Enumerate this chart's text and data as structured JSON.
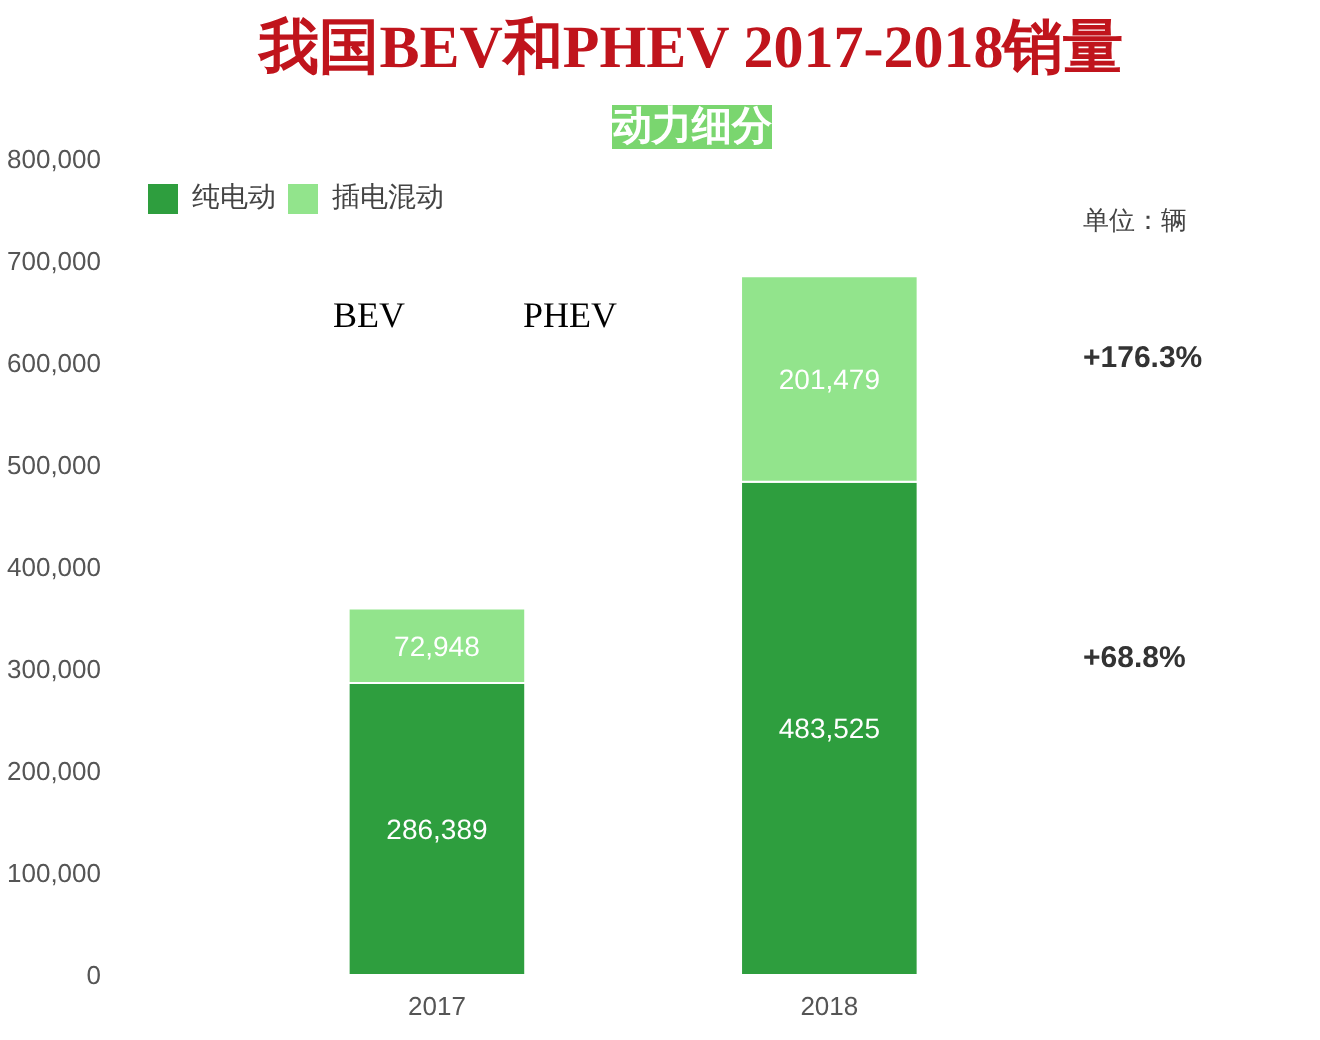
{
  "chart_data": {
    "type": "bar",
    "title": "我国BEV和PHEV 2017-2018销量",
    "subtitle": "动力细分",
    "categories": [
      "2017",
      "2018"
    ],
    "stacked": true,
    "series": [
      {
        "name": "纯电动",
        "color": "#2e9e3e",
        "values": [
          286389,
          483525
        ],
        "value_labels": [
          "286,389",
          "483,525"
        ]
      },
      {
        "name": "插电混动",
        "color": "#92e48c",
        "values": [
          72948,
          201479
        ],
        "value_labels": [
          "72,948",
          "201,479"
        ]
      }
    ],
    "ylim": [
      0,
      800000
    ],
    "yticks": [
      {
        "value": 0,
        "label": "0"
      },
      {
        "value": 100000,
        "label": "100,000"
      },
      {
        "value": 200000,
        "label": "200,000"
      },
      {
        "value": 300000,
        "label": "300,000"
      },
      {
        "value": 400000,
        "label": "400,000"
      },
      {
        "value": 500000,
        "label": "500,000"
      },
      {
        "value": 600000,
        "label": "600,000"
      },
      {
        "value": 700000,
        "label": "700,000"
      },
      {
        "value": 800000,
        "label": "800,000"
      }
    ],
    "grid": false,
    "legend": "top left",
    "annotations": [
      "单位：辆",
      "BEV",
      "PHEV",
      "+176.3%",
      "+68.8%"
    ]
  }
}
